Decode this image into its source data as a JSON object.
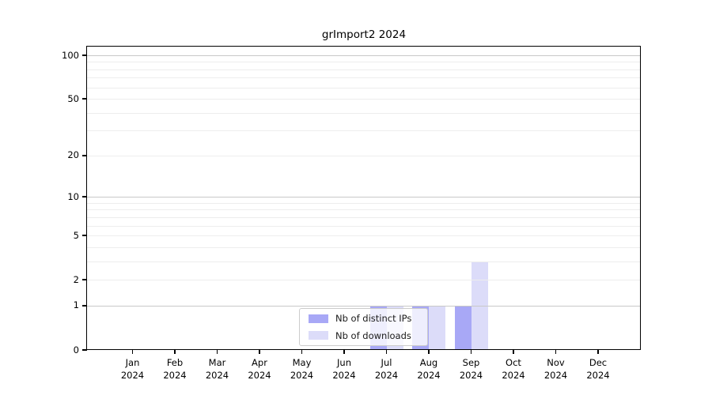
{
  "chart_data": {
    "type": "bar",
    "title": "grImport2 2024",
    "categories": [
      "Jan",
      "Feb",
      "Mar",
      "Apr",
      "May",
      "Jun",
      "Jul",
      "Aug",
      "Sep",
      "Oct",
      "Nov",
      "Dec"
    ],
    "x_tick_second_line": "2024",
    "series": [
      {
        "name": "Nb of distinct IPs",
        "color": "#a8a8f6",
        "values": [
          0,
          0,
          0,
          0,
          0,
          0,
          1,
          1,
          1,
          0,
          0,
          0
        ]
      },
      {
        "name": "Nb of downloads",
        "color": "#dcdcf9",
        "values": [
          0,
          0,
          0,
          0,
          0,
          0,
          1,
          1,
          3,
          0,
          0,
          0
        ]
      }
    ],
    "yscale": "log1p",
    "ylim": [
      0,
      100
    ],
    "y_ticks": [
      0,
      1,
      2,
      5,
      10,
      20,
      50,
      100
    ],
    "y_major_gridlines": [
      1,
      10,
      100
    ],
    "y_minor_gridlines": [
      2,
      3,
      4,
      5,
      6,
      7,
      8,
      9,
      20,
      30,
      40,
      50,
      60,
      70,
      80,
      90
    ],
    "grid": true,
    "grid_over_bars": true,
    "legend_position": "inside-bottom-center"
  },
  "colors": {
    "bar_distinct_ips": "#a8a8f6",
    "bar_downloads": "#dcdcf9",
    "grid_major": "#c8c8c8",
    "grid_minor": "#ededed",
    "spine": "#000000",
    "legend_border": "#cccccc",
    "text": "#000000"
  }
}
